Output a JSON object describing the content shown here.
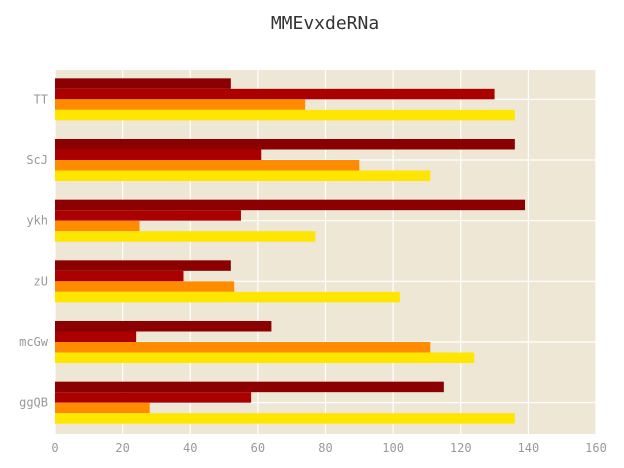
{
  "chart_data": {
    "type": "bar",
    "orientation": "horizontal",
    "title": "MMEvxdeRNa",
    "xlabel": "",
    "ylabel": "",
    "xlim": [
      0,
      160
    ],
    "xticks": [
      0,
      20,
      40,
      60,
      80,
      100,
      120,
      140,
      160
    ],
    "grid": true,
    "legend": "none",
    "categories": [
      "TT",
      "ScJ",
      "ykh",
      "zU",
      "mcGw",
      "ggQB"
    ],
    "series": [
      {
        "color": "#8B0000",
        "values": [
          52,
          136,
          139,
          52,
          64,
          115
        ]
      },
      {
        "color": "#AA0000",
        "values": [
          130,
          61,
          55,
          38,
          24,
          58
        ]
      },
      {
        "color": "#FF8C00",
        "values": [
          74,
          90,
          25,
          53,
          111,
          28
        ]
      },
      {
        "color": "#FFE600",
        "values": [
          136,
          111,
          77,
          102,
          124,
          136
        ]
      }
    ],
    "colors": {
      "plot_background": "#EFE7D6",
      "grid": "#FFFFFF"
    }
  }
}
